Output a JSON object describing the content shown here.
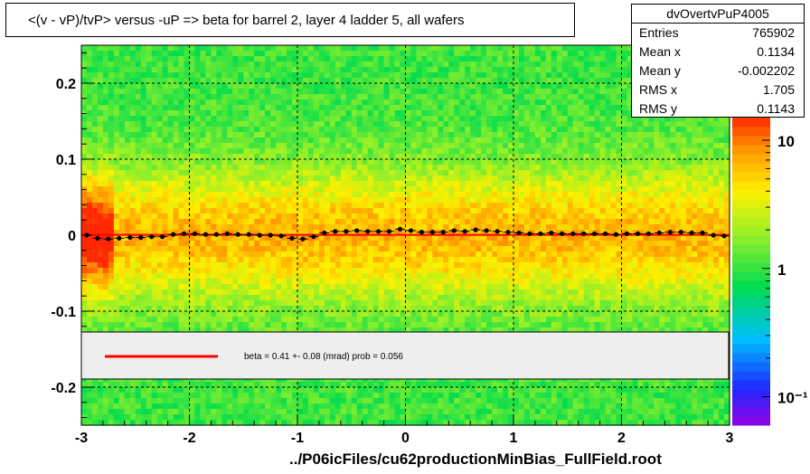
{
  "title": "<(v - vP)/tvP> versus  -uP => beta for barrel 2, layer 4 ladder 5, all wafers",
  "stats": {
    "name": "dvOvertvPuP4005",
    "rows": [
      {
        "label": "Entries",
        "value": "765902"
      },
      {
        "label": "Mean x",
        "value": "0.1134"
      },
      {
        "label": "Mean y",
        "value": "-0.002202"
      },
      {
        "label": "RMS x",
        "value": "1.705"
      },
      {
        "label": "RMS y",
        "value": "0.1143"
      }
    ]
  },
  "fit_legend": {
    "text": "beta =    0.41 +-  0.08 (mrad) prob = 0.056",
    "line_color": "#ff0000"
  },
  "footer": "../P06icFiles/cu62productionMinBias_FullField.root",
  "chart_data": {
    "type": "heatmap",
    "xlim": [
      -3,
      3
    ],
    "ylim": [
      -0.25,
      0.25
    ],
    "x_ticks": [
      -3,
      -2,
      -1,
      0,
      1,
      2,
      3
    ],
    "x_tick_labels": [
      "-3",
      "-2",
      "-1",
      "0",
      "1",
      "2",
      "3"
    ],
    "y_ticks": [
      0.2,
      0.1,
      0,
      -0.1,
      -0.2
    ],
    "y_tick_labels": [
      "0.2",
      "0.1",
      "0",
      "-0.1",
      "-0.2"
    ],
    "grid": true,
    "z_scale": "log",
    "z_ticks": [
      {
        "value": 10,
        "label": "10"
      },
      {
        "value": 1,
        "label": "1"
      },
      {
        "value": 0.1,
        "label": "10⁻¹"
      }
    ],
    "z_range": [
      0.06,
      15
    ],
    "profile_points": {
      "x": [
        -2.95,
        -2.85,
        -2.75,
        -2.65,
        -2.55,
        -2.45,
        -2.35,
        -2.25,
        -2.15,
        -2.05,
        -1.95,
        -1.85,
        -1.75,
        -1.65,
        -1.55,
        -1.45,
        -1.35,
        -1.25,
        -1.15,
        -1.05,
        -0.95,
        -0.85,
        -0.75,
        -0.65,
        -0.55,
        -0.45,
        -0.35,
        -0.25,
        -0.15,
        -0.05,
        0.05,
        0.15,
        0.25,
        0.35,
        0.45,
        0.55,
        0.65,
        0.75,
        0.85,
        0.95,
        1.05,
        1.15,
        1.25,
        1.35,
        1.45,
        1.55,
        1.65,
        1.75,
        1.85,
        1.95,
        2.05,
        2.15,
        2.25,
        2.35,
        2.45,
        2.55,
        2.65,
        2.75,
        2.85,
        2.95
      ],
      "y": [
        0.0,
        -0.004,
        -0.005,
        -0.004,
        -0.003,
        -0.003,
        -0.002,
        -0.002,
        0.001,
        0.002,
        0.002,
        0.001,
        0.001,
        0.002,
        0.001,
        0.001,
        0.0,
        0.0,
        -0.001,
        -0.004,
        -0.005,
        -0.002,
        0.003,
        0.005,
        0.005,
        0.006,
        0.005,
        0.005,
        0.005,
        0.008,
        0.006,
        0.004,
        0.004,
        0.004,
        0.006,
        0.005,
        0.007,
        0.006,
        0.005,
        0.004,
        0.003,
        0.002,
        0.002,
        0.003,
        0.002,
        0.002,
        0.002,
        0.002,
        0.002,
        0.001,
        0.002,
        0.002,
        0.002,
        0.003,
        0.004,
        0.004,
        0.003,
        0.003,
        0.0,
        -0.001
      ]
    },
    "fit_line": {
      "slope_mrad": 0.41,
      "color": "#ff0000"
    }
  }
}
